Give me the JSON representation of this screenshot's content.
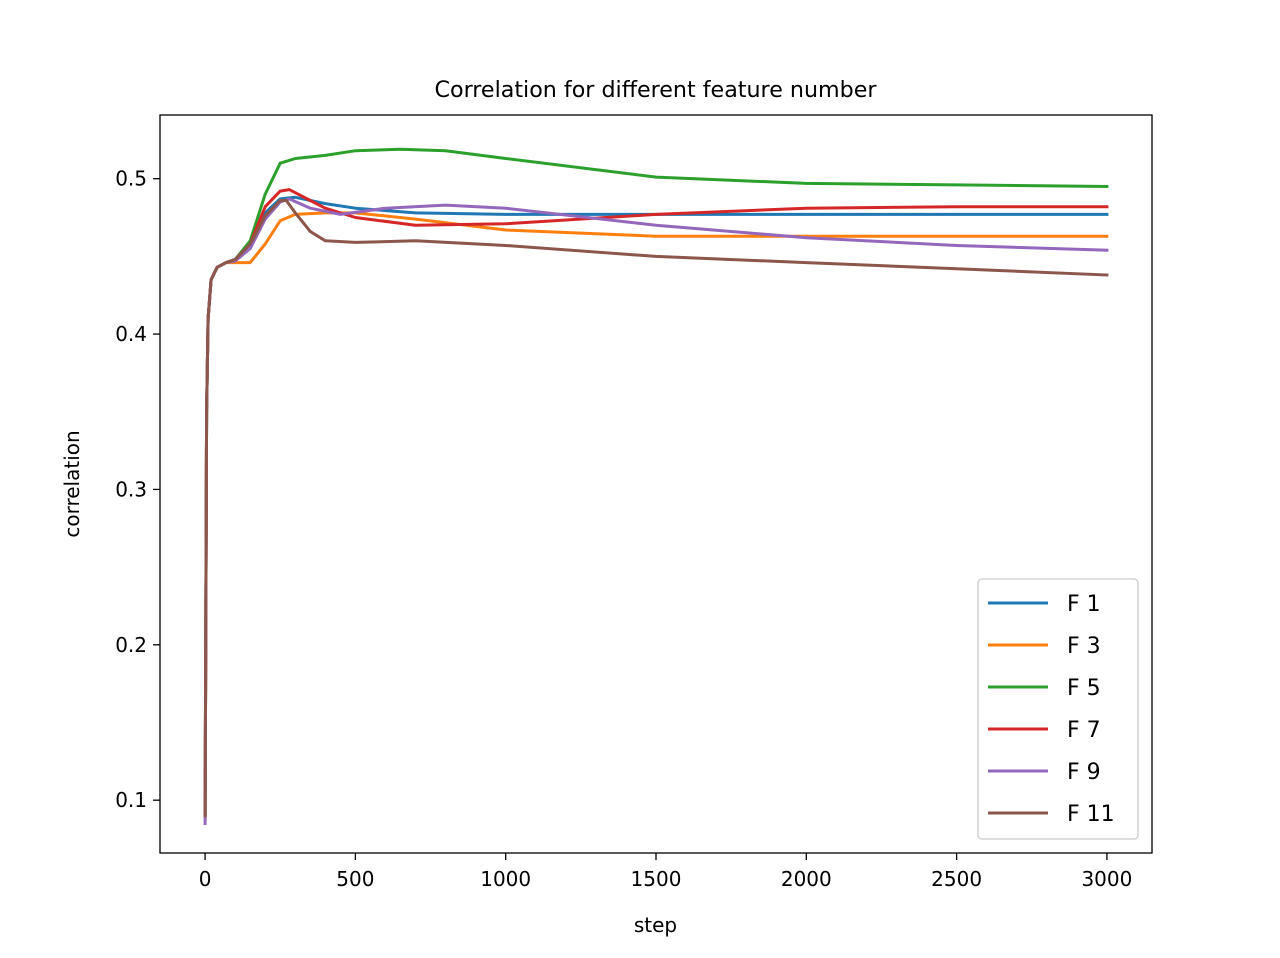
{
  "chart_data": {
    "type": "line",
    "title": "Correlation for different feature number",
    "xlabel": "step",
    "ylabel": "correlation",
    "xlim": [
      -150,
      3150
    ],
    "ylim": [
      0.066,
      0.541
    ],
    "xticks": [
      0,
      500,
      1000,
      1500,
      2000,
      2500,
      3000
    ],
    "xtick_labels": [
      "0",
      "500",
      "1000",
      "1500",
      "2000",
      "2500",
      "3000"
    ],
    "yticks": [
      0.1,
      0.2,
      0.3,
      0.4,
      0.5
    ],
    "ytick_labels": [
      "0.1",
      "0.2",
      "0.3",
      "0.4",
      "0.5"
    ],
    "grid": false,
    "legend_position": "lower-right",
    "series": [
      {
        "name": "F 1",
        "color": "#1f77b4",
        "x": [
          0,
          5,
          10,
          20,
          40,
          70,
          100,
          150,
          200,
          250,
          300,
          400,
          500,
          700,
          1000,
          1500,
          2000,
          2500,
          3000
        ],
        "y": [
          0.09,
          0.35,
          0.41,
          0.435,
          0.443,
          0.446,
          0.448,
          0.458,
          0.478,
          0.487,
          0.488,
          0.484,
          0.481,
          0.478,
          0.477,
          0.477,
          0.477,
          0.477,
          0.477
        ]
      },
      {
        "name": "F 3",
        "color": "#ff7f0e",
        "x": [
          0,
          5,
          10,
          20,
          40,
          70,
          100,
          150,
          200,
          250,
          300,
          400,
          500,
          700,
          1000,
          1500,
          2000,
          2500,
          3000
        ],
        "y": [
          0.09,
          0.35,
          0.41,
          0.435,
          0.443,
          0.446,
          0.446,
          0.446,
          0.458,
          0.473,
          0.477,
          0.478,
          0.478,
          0.474,
          0.467,
          0.463,
          0.463,
          0.463,
          0.463
        ]
      },
      {
        "name": "F 5",
        "color": "#2ca02c",
        "x": [
          0,
          5,
          10,
          20,
          40,
          70,
          100,
          150,
          200,
          250,
          300,
          400,
          500,
          650,
          800,
          1000,
          1500,
          2000,
          2500,
          3000
        ],
        "y": [
          0.09,
          0.35,
          0.41,
          0.435,
          0.443,
          0.446,
          0.448,
          0.46,
          0.49,
          0.51,
          0.513,
          0.515,
          0.518,
          0.519,
          0.518,
          0.513,
          0.501,
          0.497,
          0.496,
          0.495
        ]
      },
      {
        "name": "F 7",
        "color": "#d62728",
        "x": [
          0,
          5,
          10,
          20,
          40,
          70,
          100,
          150,
          200,
          250,
          280,
          300,
          350,
          400,
          500,
          700,
          1000,
          1500,
          2000,
          2500,
          3000
        ],
        "y": [
          0.09,
          0.35,
          0.41,
          0.435,
          0.443,
          0.446,
          0.448,
          0.458,
          0.482,
          0.492,
          0.493,
          0.491,
          0.486,
          0.481,
          0.475,
          0.47,
          0.471,
          0.477,
          0.481,
          0.482,
          0.482
        ]
      },
      {
        "name": "F 9",
        "color": "#9467bd",
        "x": [
          0,
          5,
          10,
          20,
          40,
          70,
          100,
          150,
          200,
          250,
          280,
          350,
          450,
          600,
          800,
          1000,
          1500,
          2000,
          2500,
          3000
        ],
        "y": [
          0.085,
          0.35,
          0.41,
          0.435,
          0.443,
          0.446,
          0.447,
          0.455,
          0.474,
          0.485,
          0.487,
          0.481,
          0.477,
          0.481,
          0.483,
          0.481,
          0.47,
          0.462,
          0.457,
          0.454
        ]
      },
      {
        "name": "F 11",
        "color": "#8c564b",
        "x": [
          0,
          5,
          10,
          20,
          40,
          70,
          100,
          150,
          200,
          250,
          270,
          300,
          350,
          400,
          500,
          700,
          1000,
          1500,
          2000,
          2500,
          3000
        ],
        "y": [
          0.09,
          0.35,
          0.41,
          0.435,
          0.443,
          0.446,
          0.448,
          0.458,
          0.476,
          0.486,
          0.486,
          0.478,
          0.466,
          0.46,
          0.459,
          0.46,
          0.457,
          0.45,
          0.446,
          0.442,
          0.438
        ]
      }
    ]
  }
}
